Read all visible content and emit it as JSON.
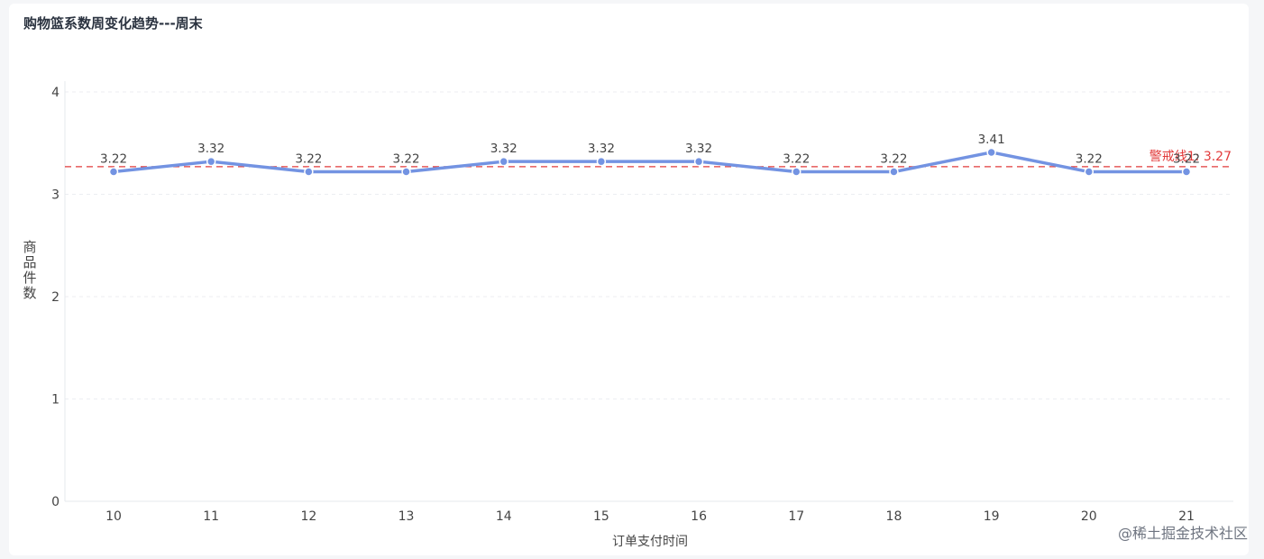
{
  "title": "购物篮系数周变化趋势---周末",
  "watermark": "@稀土掘金技术社区",
  "chart_data": {
    "type": "line",
    "x": [
      "10",
      "11",
      "12",
      "13",
      "14",
      "15",
      "16",
      "17",
      "18",
      "19",
      "20",
      "21"
    ],
    "series": [
      {
        "values": [
          3.22,
          3.32,
          3.22,
          3.22,
          3.32,
          3.32,
          3.32,
          3.22,
          3.22,
          3.41,
          3.22,
          3.22
        ],
        "color": "#7393e2"
      }
    ],
    "xlabel": "订单支付时间",
    "ylabel": "商品件数",
    "ylim": [
      0,
      4
    ],
    "yticks": [
      "0",
      "1",
      "2",
      "3",
      "4"
    ],
    "grid": true,
    "reference_line": {
      "label": "警戒线1",
      "value": "3.27",
      "color": "#e23b3b"
    }
  }
}
